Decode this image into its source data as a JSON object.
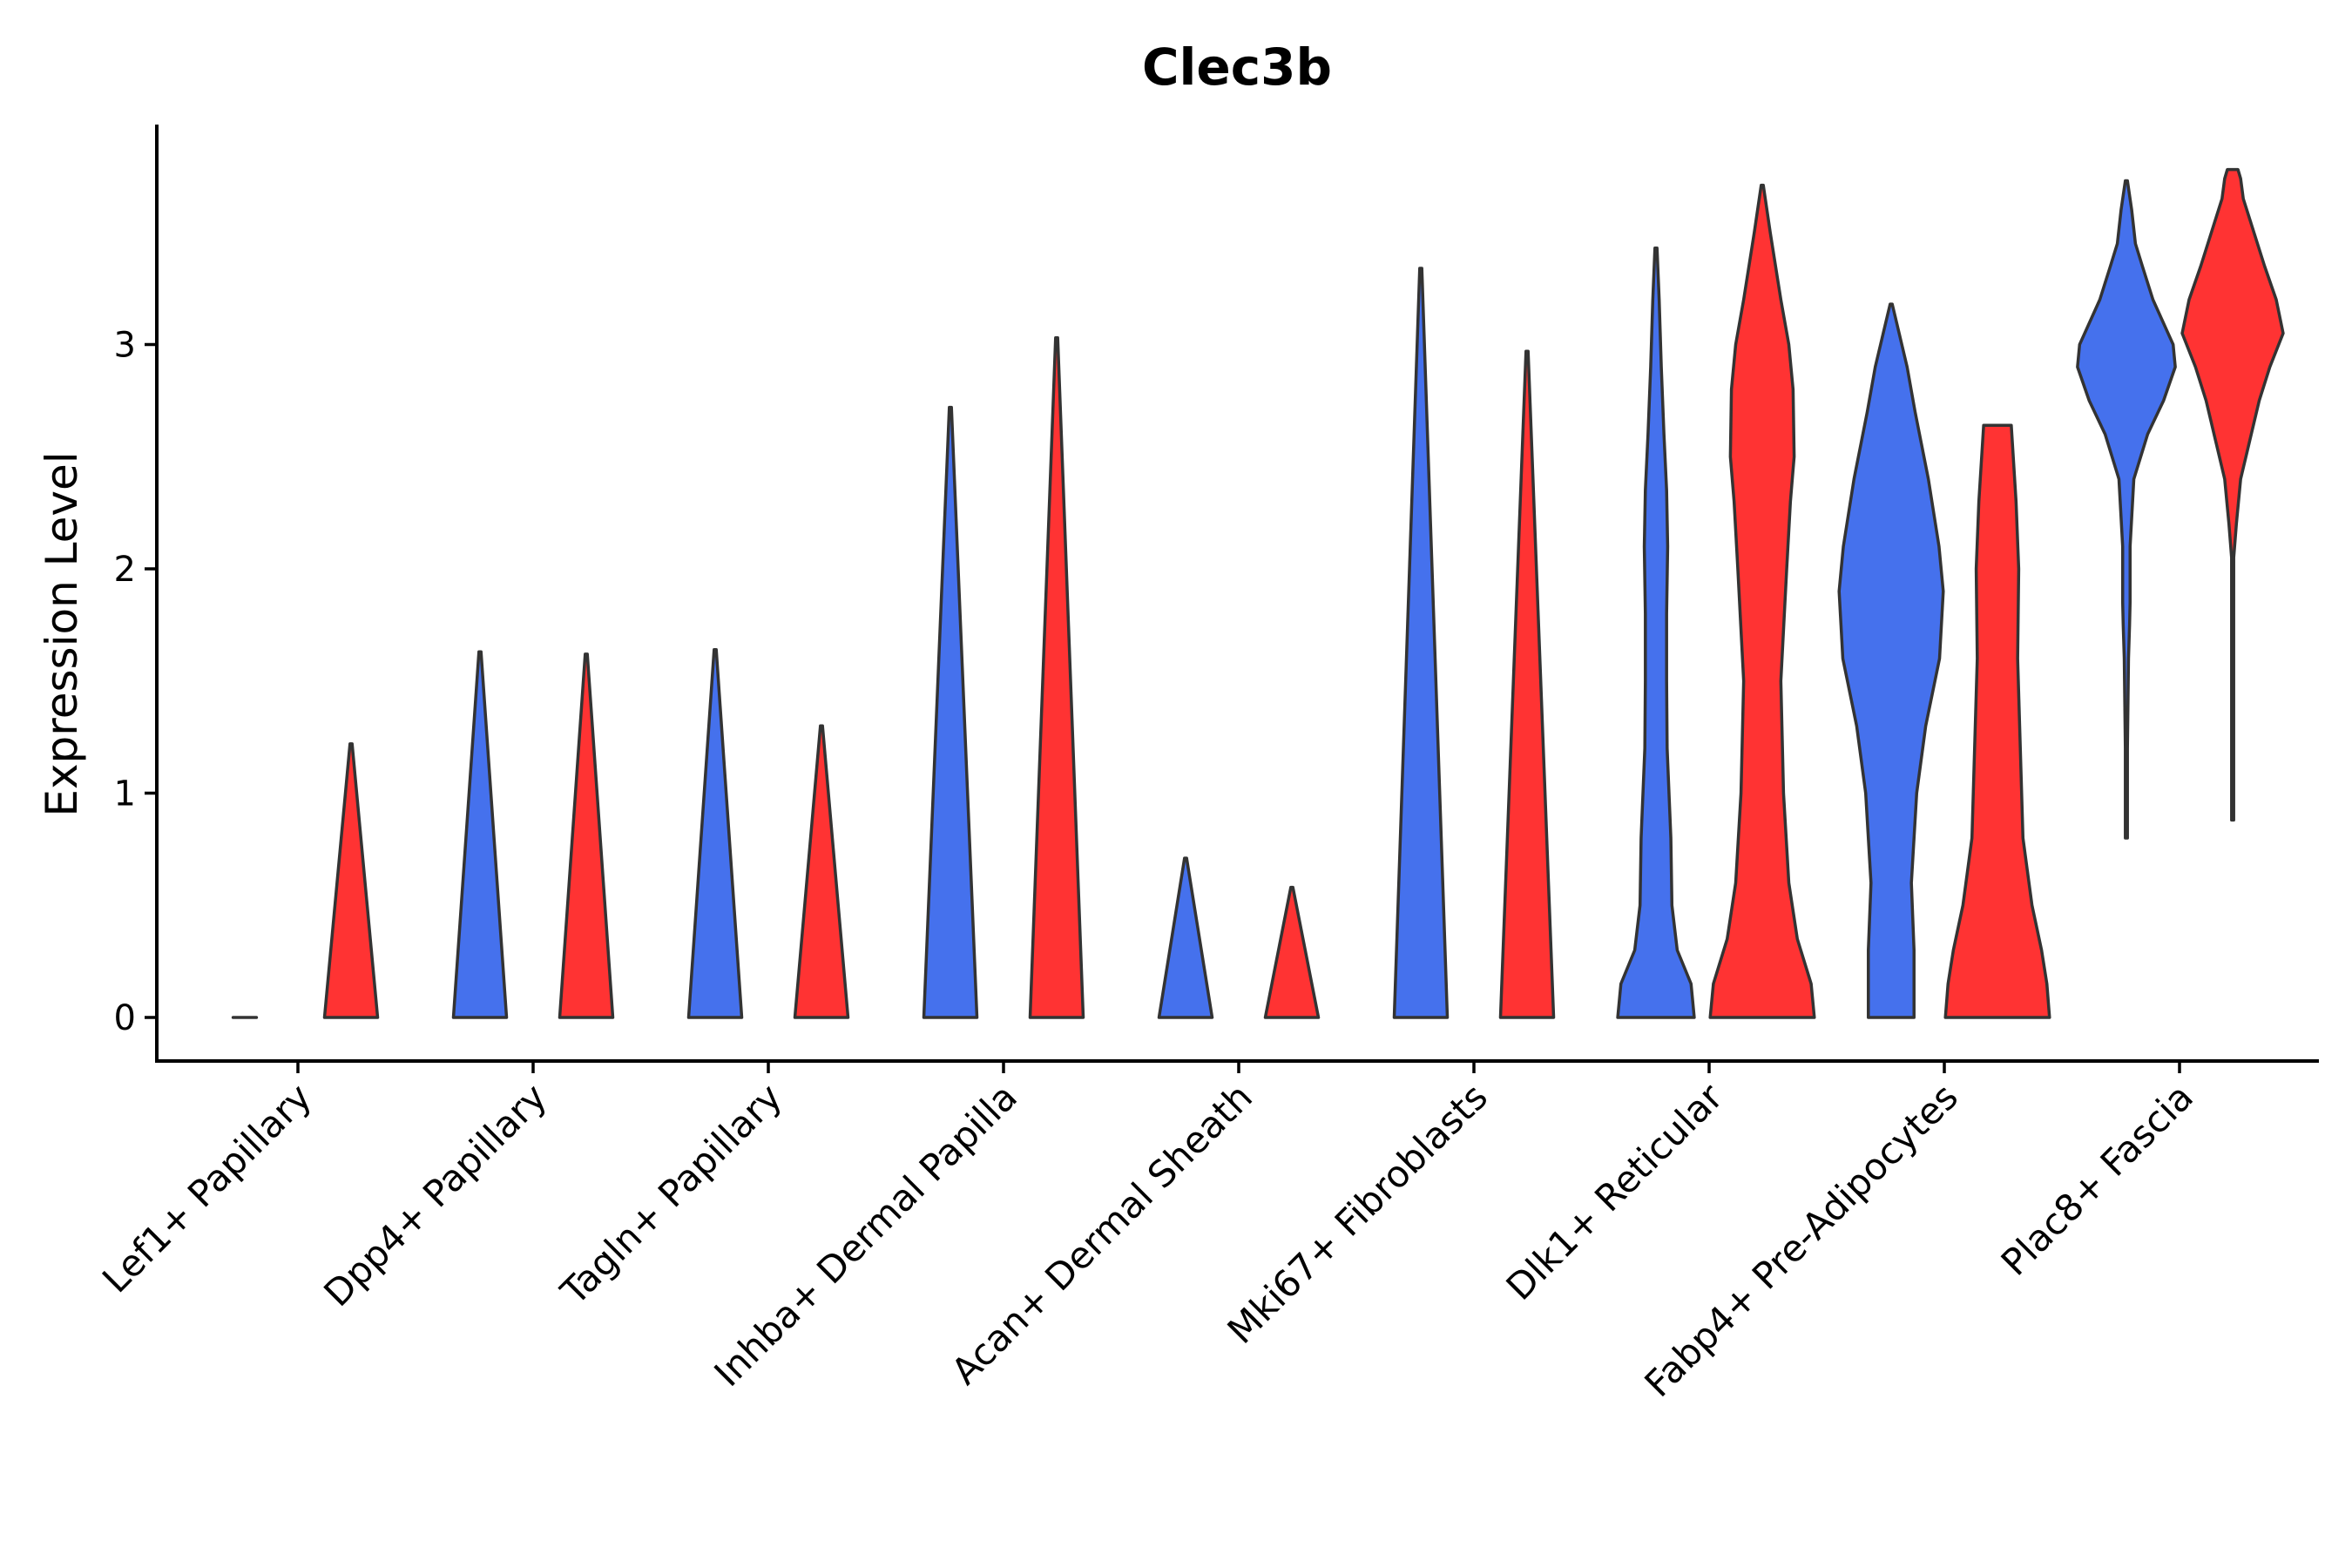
{
  "chart_data": {
    "type": "violin",
    "title": "Clec3b",
    "xlabel": "",
    "ylabel": "Expression Level",
    "ylim": [
      -0.19,
      4.0
    ],
    "yticks": [
      0,
      1,
      2,
      3
    ],
    "grid": false,
    "legend": "none",
    "series_colors": [
      "#4571ED",
      "#FF3333"
    ],
    "categories": [
      "Lef1+ Papillary",
      "Dpp4+ Papillary",
      "Tagln+ Papillary",
      "Inhba+ Dermal Papilla",
      "Acan+ Dermal Sheath",
      "Mki67+ Fibroblasts",
      "Dlk1+ Reticular",
      "Fabp4+ Pre-Adipocytes",
      "Plac8+ Fascia"
    ],
    "violins": [
      {
        "category": "Lef1+ Papillary",
        "group": 1,
        "max": 0.0,
        "profile": [
          [
            0,
            0.22
          ]
        ]
      },
      {
        "category": "Lef1+ Papillary",
        "group": 2,
        "max": 1.22,
        "profile": [
          [
            0,
            0.5
          ],
          [
            1.22,
            0.0
          ]
        ]
      },
      {
        "category": "Dpp4+ Papillary",
        "group": 1,
        "max": 1.63,
        "profile": [
          [
            0,
            0.5
          ],
          [
            1.63,
            0.0
          ]
        ]
      },
      {
        "category": "Dpp4+ Papillary",
        "group": 2,
        "max": 1.62,
        "profile": [
          [
            0,
            0.5
          ],
          [
            1.62,
            0.0
          ]
        ]
      },
      {
        "category": "Tagln+ Papillary",
        "group": 1,
        "max": 1.64,
        "profile": [
          [
            0,
            0.5
          ],
          [
            1.64,
            0.0
          ]
        ]
      },
      {
        "category": "Tagln+ Papillary",
        "group": 2,
        "max": 1.3,
        "profile": [
          [
            0,
            0.5
          ],
          [
            1.3,
            0.0
          ]
        ]
      },
      {
        "category": "Inhba+ Dermal Papilla",
        "group": 1,
        "max": 2.72,
        "profile": [
          [
            0,
            0.5
          ],
          [
            2.72,
            0.0
          ]
        ]
      },
      {
        "category": "Inhba+ Dermal Papilla",
        "group": 2,
        "max": 3.03,
        "profile": [
          [
            0,
            0.5
          ],
          [
            3.03,
            0.0
          ]
        ]
      },
      {
        "category": "Acan+ Dermal Sheath",
        "group": 1,
        "max": 0.71,
        "profile": [
          [
            0,
            0.5
          ],
          [
            0.71,
            0.0
          ]
        ]
      },
      {
        "category": "Acan+ Dermal Sheath",
        "group": 2,
        "max": 0.58,
        "profile": [
          [
            0,
            0.5
          ],
          [
            0.58,
            0.0
          ]
        ]
      },
      {
        "category": "Mki67+ Fibroblasts",
        "group": 1,
        "max": 3.34,
        "profile": [
          [
            0,
            0.5
          ],
          [
            3.34,
            0.0
          ]
        ]
      },
      {
        "category": "Mki67+ Fibroblasts",
        "group": 2,
        "max": 2.97,
        "profile": [
          [
            0,
            0.5
          ],
          [
            2.97,
            0.0
          ]
        ]
      },
      {
        "category": "Dlk1+ Reticular",
        "group": 1,
        "max": 3.43,
        "profile": [
          [
            0,
            0.72
          ],
          [
            0.15,
            0.66
          ],
          [
            0.3,
            0.4
          ],
          [
            0.5,
            0.3
          ],
          [
            0.8,
            0.28
          ],
          [
            1.2,
            0.21
          ],
          [
            1.5,
            0.2
          ],
          [
            1.8,
            0.2
          ],
          [
            2.1,
            0.22
          ],
          [
            2.35,
            0.2
          ],
          [
            2.6,
            0.15
          ],
          [
            2.9,
            0.1
          ],
          [
            3.2,
            0.06
          ],
          [
            3.43,
            0.01
          ]
        ]
      },
      {
        "category": "Dlk1+ Reticular",
        "group": 2,
        "max": 3.71,
        "profile": [
          [
            0,
            0.98
          ],
          [
            0.15,
            0.92
          ],
          [
            0.35,
            0.66
          ],
          [
            0.6,
            0.5
          ],
          [
            1.0,
            0.4
          ],
          [
            1.5,
            0.35
          ],
          [
            2.0,
            0.46
          ],
          [
            2.3,
            0.53
          ],
          [
            2.5,
            0.6
          ],
          [
            2.8,
            0.58
          ],
          [
            3.0,
            0.5
          ],
          [
            3.2,
            0.35
          ],
          [
            3.5,
            0.15
          ],
          [
            3.71,
            0.01
          ]
        ]
      },
      {
        "category": "Fabp4+ Pre-Adipocytes",
        "group": 1,
        "max": 3.18,
        "profile": [
          [
            0,
            0.43
          ],
          [
            0.3,
            0.43
          ],
          [
            0.6,
            0.38
          ],
          [
            1.0,
            0.48
          ],
          [
            1.3,
            0.65
          ],
          [
            1.6,
            0.91
          ],
          [
            1.9,
            0.98
          ],
          [
            2.1,
            0.9
          ],
          [
            2.4,
            0.7
          ],
          [
            2.7,
            0.45
          ],
          [
            2.9,
            0.3
          ],
          [
            3.1,
            0.1
          ],
          [
            3.18,
            0.01
          ]
        ]
      },
      {
        "category": "Fabp4+ Pre-Adipocytes",
        "group": 2,
        "max": 2.64,
        "profile": [
          [
            0,
            0.98
          ],
          [
            0.15,
            0.93
          ],
          [
            0.3,
            0.83
          ],
          [
            0.5,
            0.65
          ],
          [
            0.8,
            0.48
          ],
          [
            1.2,
            0.43
          ],
          [
            1.6,
            0.38
          ],
          [
            2.0,
            0.4
          ],
          [
            2.3,
            0.35
          ],
          [
            2.64,
            0.26
          ]
        ]
      },
      {
        "category": "Plac8+ Fascia",
        "group": 1,
        "max": 3.73,
        "profile": [
          [
            0.8,
            0.01
          ],
          [
            1.2,
            0.01
          ],
          [
            1.6,
            0.04
          ],
          [
            1.75,
            0.06
          ],
          [
            1.85,
            0.07
          ],
          [
            2.1,
            0.07
          ],
          [
            2.4,
            0.14
          ],
          [
            2.6,
            0.4
          ],
          [
            2.75,
            0.7
          ],
          [
            2.9,
            0.92
          ],
          [
            3.0,
            0.88
          ],
          [
            3.2,
            0.5
          ],
          [
            3.35,
            0.3
          ],
          [
            3.45,
            0.17
          ],
          [
            3.6,
            0.1
          ],
          [
            3.73,
            0.01
          ]
        ]
      },
      {
        "category": "Plac8+ Fascia",
        "group": 2,
        "max": 3.78,
        "profile": [
          [
            0.88,
            0.01
          ],
          [
            1.3,
            0.01
          ],
          [
            1.8,
            0.01
          ],
          [
            2.05,
            0.02
          ],
          [
            2.2,
            0.07
          ],
          [
            2.4,
            0.15
          ],
          [
            2.6,
            0.35
          ],
          [
            2.75,
            0.5
          ],
          [
            2.9,
            0.7
          ],
          [
            3.05,
            0.95
          ],
          [
            3.2,
            0.82
          ],
          [
            3.35,
            0.6
          ],
          [
            3.5,
            0.4
          ],
          [
            3.65,
            0.2
          ],
          [
            3.74,
            0.15
          ],
          [
            3.78,
            0.1
          ]
        ]
      }
    ]
  }
}
